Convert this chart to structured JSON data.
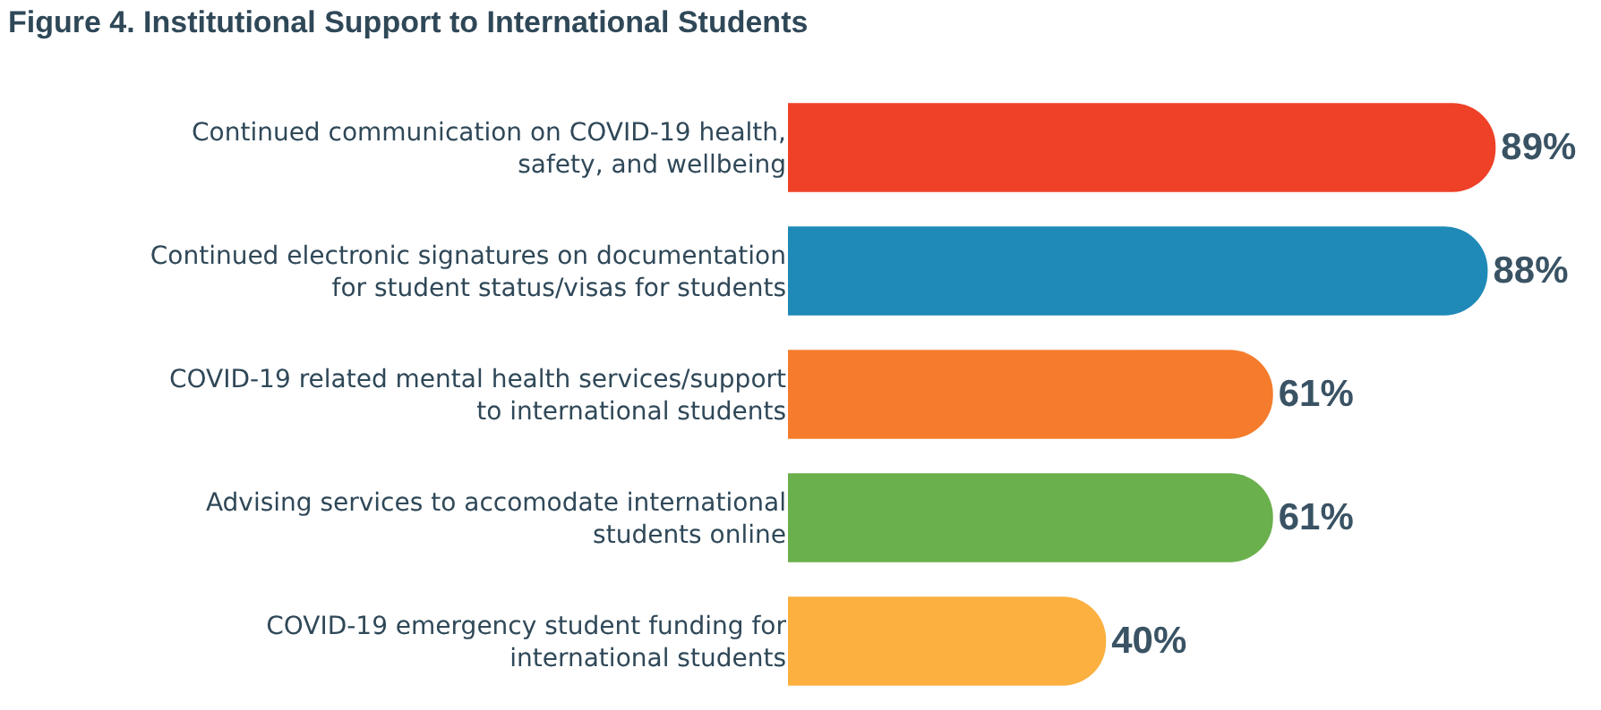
{
  "chart_data": {
    "type": "bar",
    "orientation": "horizontal",
    "title": "Figure 4. Institutional Support to International Students",
    "categories": [
      "Continued communication on COVID-19 health, safety, and wellbeing",
      "Continued electronic signatures on documentation for student status/visas for students",
      "COVID-19 related mental health services/support to international students",
      "Advising services to accomodate international students online",
      "COVID-19 emergency student funding for international students"
    ],
    "values": [
      89,
      88,
      61,
      61,
      40
    ],
    "colors": [
      "#ee4128",
      "#1f8ab8",
      "#f47c2c",
      "#6ab04c",
      "#fbb040"
    ],
    "value_labels": [
      "89%",
      "88%",
      "61%",
      "61%",
      "40%"
    ]
  }
}
